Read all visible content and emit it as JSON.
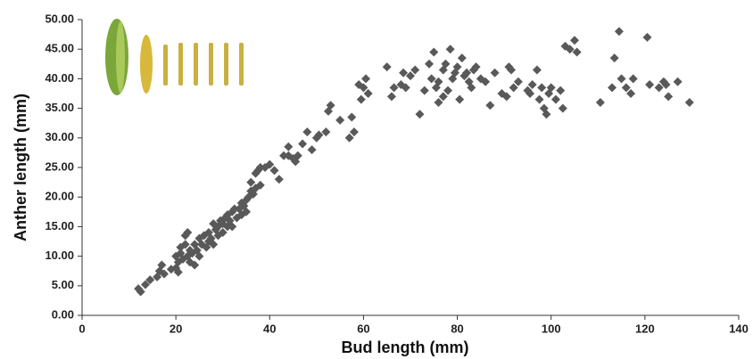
{
  "chart_data": {
    "type": "scatter",
    "x_label": "Bud length (mm)",
    "y_label": "Anther length (mm)",
    "color": "#595959",
    "xlim": [
      0,
      140
    ],
    "xticks": [
      0,
      20,
      40,
      60,
      80,
      100,
      120,
      140
    ],
    "ylim": [
      0,
      50
    ],
    "yticks": [
      {
        "value": 0,
        "label": "0.00"
      },
      {
        "value": 5,
        "label": "5.00"
      },
      {
        "value": 10,
        "label": "10.00"
      },
      {
        "value": 15,
        "label": "15.00"
      },
      {
        "value": 20,
        "label": "20.00"
      },
      {
        "value": 25,
        "label": "25.00"
      },
      {
        "value": 30,
        "label": "30.00"
      },
      {
        "value": 35,
        "label": "35.00"
      },
      {
        "value": 40,
        "label": "40.00"
      },
      {
        "value": 45,
        "label": "45.00"
      },
      {
        "value": 50,
        "label": "50.00"
      }
    ],
    "x": [
      12,
      12.5,
      13.5,
      14.5,
      16,
      16.5,
      17,
      17.5,
      19,
      20,
      20.5,
      20,
      20.5,
      21,
      21,
      21.5,
      22,
      22,
      22.5,
      22.5,
      23,
      23,
      23.5,
      24,
      24,
      24.5,
      25,
      25,
      25.5,
      26,
      26.5,
      27,
      27,
      27.5,
      28,
      28,
      28.5,
      29,
      29,
      29.5,
      30,
      30,
      30.5,
      31,
      31,
      31.5,
      32,
      32,
      32.5,
      33,
      33.5,
      34,
      34,
      34.5,
      35,
      35,
      35.5,
      36,
      36,
      36.5,
      37,
      37,
      37.5,
      38,
      38,
      39,
      40,
      41,
      42,
      43,
      44,
      44,
      45,
      45.5,
      46,
      47,
      48,
      49,
      50,
      50.5,
      52,
      52.5,
      53,
      55,
      57,
      57.5,
      58,
      59,
      59.5,
      60,
      60.5,
      61,
      65,
      66,
      66.5,
      68,
      68.5,
      69,
      70,
      71,
      72,
      73,
      74,
      74.5,
      75,
      75.5,
      76,
      76,
      77,
      77,
      77.5,
      78,
      78.5,
      79,
      79.5,
      80,
      80.5,
      81,
      81.5,
      82,
      82.5,
      83,
      83.5,
      84,
      85,
      86,
      87,
      88,
      89.5,
      90.5,
      91,
      91.5,
      92,
      93,
      95,
      95.5,
      96,
      97,
      97.5,
      98,
      98.5,
      99,
      99.5,
      100,
      101,
      102,
      102.5,
      103,
      104,
      105,
      105.5,
      110.5,
      113,
      113.5,
      114.5,
      115,
      116,
      117,
      117.5,
      120.5,
      121,
      123,
      124,
      124.5,
      125,
      127,
      129.5
    ],
    "values": [
      4.5,
      4,
      5.2,
      6,
      6.5,
      7.5,
      8.5,
      7,
      7.8,
      8,
      7.3,
      10,
      9,
      10.5,
      11.5,
      9.5,
      12,
      13.5,
      14,
      10,
      11,
      9,
      10.5,
      12,
      8.5,
      11,
      10,
      13,
      12,
      13.5,
      11.5,
      12.5,
      14,
      13,
      15.5,
      12,
      14.5,
      15,
      13.5,
      16,
      14,
      15.5,
      16.5,
      17,
      15,
      16,
      15,
      17.5,
      18,
      16.5,
      18,
      17,
      19,
      18.5,
      19.5,
      17.5,
      20,
      21,
      22.5,
      20.5,
      24,
      21.5,
      24.5,
      25,
      22,
      25,
      25.5,
      24.5,
      23,
      27,
      27,
      28.5,
      26.5,
      26,
      27,
      29,
      31,
      28,
      30,
      30.5,
      31,
      34.5,
      35.5,
      33,
      30,
      33.5,
      31,
      39,
      36.5,
      38.5,
      40,
      37.5,
      42,
      37,
      38.5,
      39,
      41,
      38.5,
      40.5,
      41.5,
      34,
      38,
      42.5,
      40,
      44.5,
      38.5,
      36,
      39.5,
      37,
      41.5,
      42.5,
      38,
      45,
      40,
      41,
      42,
      36.5,
      43.5,
      40.5,
      41,
      39.5,
      38.5,
      41.5,
      42,
      40,
      39.5,
      35.5,
      41,
      37.5,
      37,
      42,
      41.5,
      38.5,
      39.5,
      38,
      37.5,
      39,
      41.5,
      36.5,
      38.5,
      35,
      34,
      37.5,
      38.5,
      36.5,
      38,
      35,
      45.5,
      45,
      46.5,
      44.5,
      36,
      38.5,
      43.5,
      48,
      40,
      38.5,
      37.5,
      40,
      47,
      39,
      38.5,
      39.5,
      39,
      37,
      39.5,
      36
    ]
  }
}
